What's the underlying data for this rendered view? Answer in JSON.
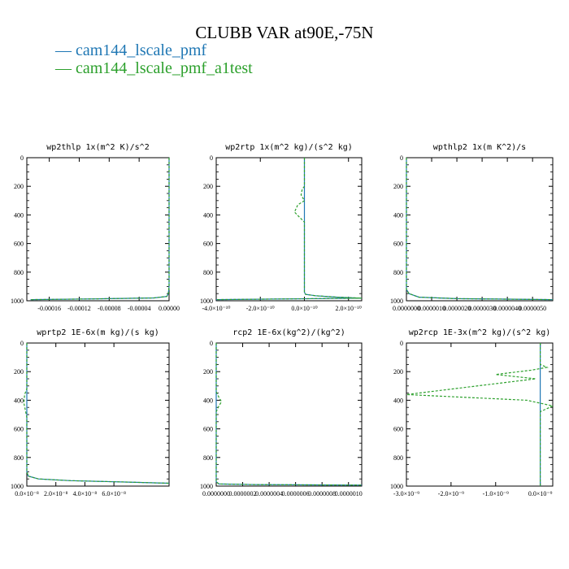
{
  "title": "CLUBB VAR at90E,-75N",
  "legend": [
    {
      "label": "— cam144_lscale_pmf",
      "color": "#1f77b4"
    },
    {
      "label": "— cam144_lscale_pmf_a1test",
      "color": "#2ca02c"
    }
  ],
  "chart_data": [
    {
      "type": "line",
      "title": "wp2thlp   1x(m^2 K)/s^2",
      "xlim": [
        -0.00019,
        0.0
      ],
      "ylim": [
        1000,
        0
      ],
      "xticks": [
        "-0.00016",
        "-0.00012",
        "-0.00008",
        "-0.00004",
        "0.00000"
      ],
      "xtick_values": [
        -0.00016,
        -0.00012,
        -8e-05,
        -4e-05,
        0.0
      ],
      "yticks": [
        "0",
        "200",
        "400",
        "600",
        "800",
        "1000"
      ],
      "ytick_values": [
        0,
        200,
        400,
        600,
        800,
        1000
      ],
      "series": [
        {
          "name": "cam144_lscale_pmf",
          "dashed": false,
          "x": [
            0,
            0,
            -1e-06,
            -3e-06,
            -2e-05,
            -0.0001,
            -0.000185
          ],
          "y": [
            0,
            900,
            950,
            970,
            980,
            987,
            992
          ]
        },
        {
          "name": "cam144_lscale_pmf_a1test",
          "dashed": true,
          "x": [
            0,
            0,
            -1e-06,
            -3e-06,
            -2e-05,
            -0.0001,
            -0.000185
          ],
          "y": [
            0,
            900,
            950,
            970,
            980,
            987,
            992
          ]
        }
      ]
    },
    {
      "type": "line",
      "title": "wp2rtp   1x(m^2 kg)/(s^2 kg)",
      "xlim": [
        -4e-10,
        2.6e-10
      ],
      "ylim": [
        1000,
        0
      ],
      "xticks": [
        "-4.0×10⁻¹⁰",
        "-2.0×10⁻¹⁰",
        "0.0×10⁻¹⁰",
        "2.0×10⁻¹⁰"
      ],
      "xtick_values": [
        -4e-10,
        -2e-10,
        0.0,
        2e-10
      ],
      "yticks": [
        "0",
        "200",
        "400",
        "600",
        "800",
        "1000"
      ],
      "ytick_values": [
        0,
        200,
        400,
        600,
        800,
        1000
      ],
      "series": [
        {
          "name": "cam144_lscale_pmf",
          "dashed": false,
          "x": [
            0,
            0,
            0,
            5e-12,
            5e-11,
            1.5e-10,
            2.6e-10,
            -4e-10
          ],
          "y": [
            0,
            900,
            940,
            955,
            965,
            975,
            982,
            992
          ]
        },
        {
          "name": "cam144_lscale_pmf_a1test",
          "dashed": true,
          "x": [
            0,
            0,
            -1e-11,
            -1.5e-11,
            0,
            -3e-11,
            -4.5e-11,
            -2e-11,
            0,
            0,
            0,
            5e-12,
            5e-11,
            1.5e-10,
            2.6e-10,
            -4e-10
          ],
          "y": [
            0,
            200,
            220,
            260,
            300,
            330,
            380,
            420,
            450,
            500,
            940,
            955,
            965,
            975,
            982,
            992
          ]
        }
      ]
    },
    {
      "type": "line",
      "title": "wpthlp2   1x(m K^2)/s",
      "xlim": [
        0.0,
        5.8e-06
      ],
      "ylim": [
        1000,
        0
      ],
      "xticks": [
        "0.0000000",
        "0.0000010",
        "0.0000020",
        "0.0000030",
        "0.0000040",
        "0.0000050"
      ],
      "xtick_values": [
        0.0,
        1e-06,
        2e-06,
        3e-06,
        4e-06,
        5e-06
      ],
      "yticks": [
        "0",
        "200",
        "400",
        "600",
        "800",
        "1000"
      ],
      "ytick_values": [
        0,
        200,
        400,
        600,
        800,
        1000
      ],
      "series": [
        {
          "name": "cam144_lscale_pmf",
          "dashed": false,
          "x": [
            0,
            0,
            1e-07,
            5e-07,
            2e-06,
            5.8e-06
          ],
          "y": [
            0,
            920,
            950,
            975,
            985,
            992
          ]
        },
        {
          "name": "cam144_lscale_pmf_a1test",
          "dashed": true,
          "x": [
            0,
            0,
            1e-07,
            5e-07,
            2e-06,
            5.8e-06
          ],
          "y": [
            0,
            920,
            950,
            975,
            985,
            992
          ]
        }
      ]
    },
    {
      "type": "line",
      "title": "wprtp2   1E-6x(m kg)/(s kg)",
      "xlim": [
        0.0,
        9.8e-08
      ],
      "ylim": [
        1000,
        0
      ],
      "xticks": [
        "0.0×10⁻⁸",
        "2.0×10⁻⁸",
        "4.0×10⁻⁸",
        "6.0×10⁻⁸"
      ],
      "xtick_values": [
        0.0,
        2e-08,
        4e-08,
        6e-08
      ],
      "yticks": [
        "0",
        "200",
        "400",
        "600",
        "800",
        "1000"
      ],
      "ytick_values": [
        0,
        200,
        400,
        600,
        800,
        1000
      ],
      "series": [
        {
          "name": "cam144_lscale_pmf",
          "dashed": false,
          "x": [
            0,
            0,
            1e-09,
            8e-09,
            3e-08,
            7e-08,
            9.8e-08
          ],
          "y": [
            0,
            900,
            930,
            950,
            962,
            972,
            980
          ]
        },
        {
          "name": "cam144_lscale_pmf_a1test",
          "dashed": true,
          "x": [
            0,
            0,
            -1.5e-09,
            -2e-09,
            -1e-09,
            0,
            0,
            1e-09,
            8e-09,
            3e-08,
            7e-08,
            9.8e-08
          ],
          "y": [
            0,
            320,
            360,
            420,
            470,
            520,
            900,
            930,
            950,
            962,
            972,
            980
          ]
        }
      ]
    },
    {
      "type": "line",
      "title": "rcp2   1E-6x(kg^2)/(kg^2)",
      "xlim": [
        0.0,
        1.1e-06
      ],
      "ylim": [
        1000,
        0
      ],
      "xticks": [
        "0.0000000",
        "0.0000002",
        "0.0000004",
        "0.0000006",
        "0.0000008",
        "0.0000010"
      ],
      "xtick_values": [
        0.0,
        2e-07,
        4e-07,
        6e-07,
        8e-07,
        1e-06
      ],
      "yticks": [
        "0",
        "200",
        "400",
        "600",
        "800",
        "1000"
      ],
      "ytick_values": [
        0,
        200,
        400,
        600,
        800,
        1000
      ],
      "series": [
        {
          "name": "cam144_lscale_pmf",
          "dashed": false,
          "x": [
            0,
            0,
            2e-08,
            3e-07,
            1.1e-06
          ],
          "y": [
            0,
            970,
            985,
            990,
            993
          ]
        },
        {
          "name": "cam144_lscale_pmf_a1test",
          "dashed": true,
          "x": [
            0,
            0,
            2e-08,
            4e-08,
            2e-08,
            0,
            0,
            2e-08,
            3e-07,
            1.1e-06
          ],
          "y": [
            0,
            340,
            380,
            410,
            440,
            480,
            970,
            985,
            990,
            993
          ]
        }
      ]
    },
    {
      "type": "line",
      "title": "wp2rcp   1E-3x(m^2 kg)/(s^2 kg)",
      "xlim": [
        -3e-09,
        2.8e-10
      ],
      "ylim": [
        1000,
        0
      ],
      "xticks": [
        "-3.0×10⁻⁹",
        "-2.0×10⁻⁹",
        "-1.0×10⁻⁹",
        "0.0×10⁻⁹"
      ],
      "xtick_values": [
        -3e-09,
        -2e-09,
        -1e-09,
        0.0
      ],
      "yticks": [
        "0",
        "200",
        "400",
        "600",
        "800",
        "1000"
      ],
      "ytick_values": [
        0,
        200,
        400,
        600,
        800,
        1000
      ],
      "series": [
        {
          "name": "cam144_lscale_pmf",
          "dashed": false,
          "x": [
            0,
            0
          ],
          "y": [
            0,
            1000
          ]
        },
        {
          "name": "cam144_lscale_pmf_a1test",
          "dashed": true,
          "x": [
            0,
            0,
            1.5e-10,
            -2e-10,
            -1e-09,
            -1e-10,
            -3e-09,
            -3e-10,
            2.8e-10,
            0,
            0
          ],
          "y": [
            0,
            150,
            170,
            190,
            220,
            250,
            360,
            400,
            440,
            480,
            1000
          ]
        }
      ]
    }
  ]
}
